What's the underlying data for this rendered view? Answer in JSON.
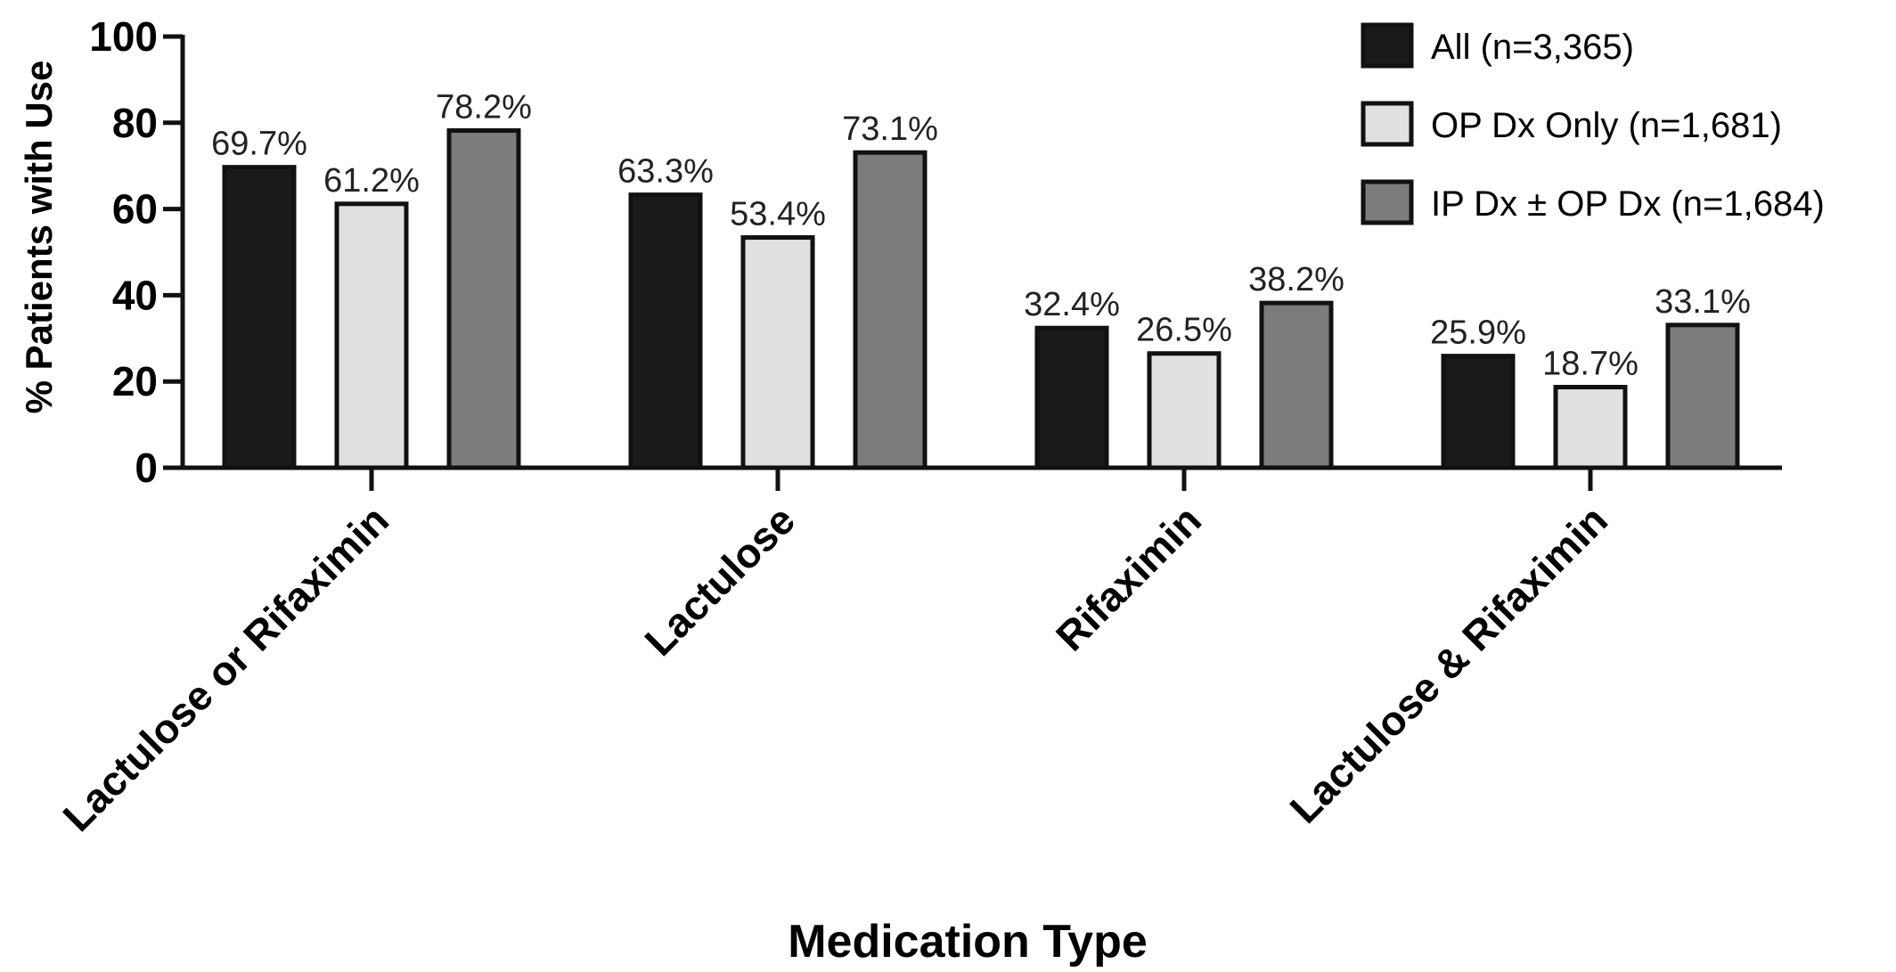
{
  "chart_data": {
    "type": "bar",
    "title": "",
    "xlabel": "Medication Type",
    "ylabel": "% Patients with Use",
    "ylim": [
      0,
      100
    ],
    "yticks": [
      0,
      20,
      40,
      60,
      80,
      100
    ],
    "grid": false,
    "legend_position": "top-right",
    "categories": [
      "Lactulose or Rifaximin",
      "Lactulose",
      "Rifaximin",
      "Lactulose & Rifaximin"
    ],
    "series": [
      {
        "name": "All (n=3,365)",
        "color": "#1a1a1a",
        "values": [
          69.7,
          63.3,
          32.4,
          25.9
        ],
        "labels": [
          "69.7%",
          "63.3%",
          "32.4%",
          "25.9%"
        ]
      },
      {
        "name": "OP Dx Only (n=1,681)",
        "color": "#e0e0e0",
        "values": [
          61.2,
          53.4,
          26.5,
          18.7
        ],
        "labels": [
          "61.2%",
          "53.4%",
          "26.5%",
          "18.7%"
        ]
      },
      {
        "name": "IP Dx ± OP Dx (n=1,684)",
        "color": "#7c7c7c",
        "values": [
          78.2,
          73.1,
          38.2,
          33.1
        ],
        "labels": [
          "78.2%",
          "73.1%",
          "38.2%",
          "33.1%"
        ]
      }
    ]
  }
}
